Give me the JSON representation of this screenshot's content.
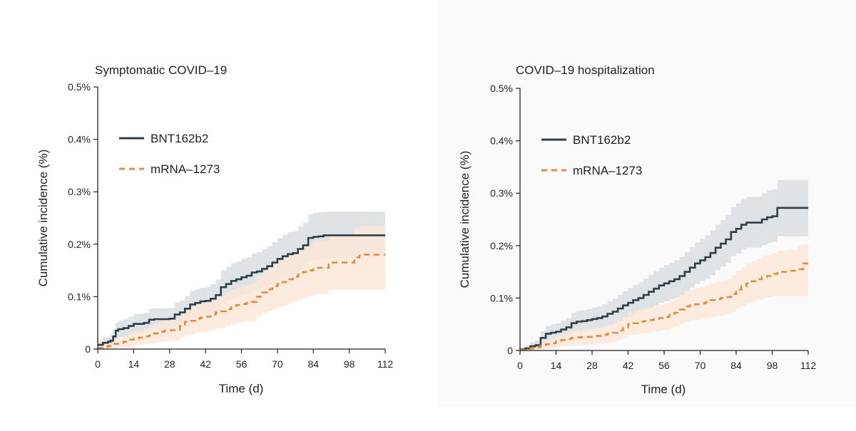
{
  "chart_data": [
    {
      "type": "line",
      "title": "Symptomatic COVID–19",
      "xlabel": "Time (d)",
      "ylabel": "Cumulative incidence (%)",
      "xlim": [
        0,
        112
      ],
      "ylim": [
        0,
        0.5
      ],
      "xticks": [
        0,
        14,
        28,
        42,
        56,
        70,
        84,
        98,
        112
      ],
      "xtick_labels": [
        "0",
        "14",
        "28",
        "42",
        "56",
        "70",
        "84",
        "98",
        "112"
      ],
      "yticks": [
        0,
        0.1,
        0.2,
        0.3,
        0.4,
        0.5
      ],
      "ytick_labels": [
        "0",
        "0.1%",
        "0.2%",
        "0.3%",
        "0.4%",
        "0.5%"
      ],
      "legend_position": "upper-left",
      "series": [
        {
          "name": "BNT162b2",
          "color": "#2e3f47",
          "style": "solid",
          "band_color": "#dde2e4",
          "x": [
            0,
            2,
            4,
            5,
            6,
            7,
            8,
            10,
            12,
            14,
            16,
            18,
            20,
            22,
            24,
            26,
            28,
            30,
            32,
            34,
            36,
            38,
            40,
            42,
            44,
            46,
            48,
            50,
            52,
            54,
            56,
            58,
            60,
            62,
            64,
            66,
            68,
            70,
            72,
            74,
            76,
            78,
            80,
            82,
            84,
            86,
            88,
            98,
            112
          ],
          "y": [
            0.008,
            0.012,
            0.014,
            0.016,
            0.024,
            0.035,
            0.038,
            0.04,
            0.044,
            0.048,
            0.048,
            0.05,
            0.056,
            0.057,
            0.057,
            0.057,
            0.058,
            0.066,
            0.07,
            0.077,
            0.085,
            0.088,
            0.091,
            0.092,
            0.096,
            0.103,
            0.118,
            0.124,
            0.13,
            0.133,
            0.137,
            0.14,
            0.146,
            0.148,
            0.153,
            0.158,
            0.165,
            0.172,
            0.177,
            0.181,
            0.183,
            0.191,
            0.198,
            0.212,
            0.214,
            0.215,
            0.217,
            0.217,
            0.217
          ],
          "lower": [
            0,
            0.003,
            0.005,
            0.006,
            0.012,
            0.02,
            0.023,
            0.024,
            0.027,
            0.03,
            0.03,
            0.032,
            0.036,
            0.037,
            0.037,
            0.037,
            0.038,
            0.044,
            0.048,
            0.054,
            0.06,
            0.063,
            0.065,
            0.066,
            0.069,
            0.075,
            0.087,
            0.092,
            0.097,
            0.1,
            0.103,
            0.106,
            0.111,
            0.113,
            0.117,
            0.121,
            0.127,
            0.133,
            0.137,
            0.141,
            0.143,
            0.15,
            0.156,
            0.168,
            0.17,
            0.171,
            0.172,
            0.176,
            0.176
          ],
          "upper": [
            0.016,
            0.022,
            0.025,
            0.028,
            0.037,
            0.05,
            0.054,
            0.057,
            0.062,
            0.067,
            0.067,
            0.069,
            0.077,
            0.078,
            0.078,
            0.078,
            0.079,
            0.089,
            0.093,
            0.101,
            0.111,
            0.114,
            0.117,
            0.119,
            0.124,
            0.132,
            0.15,
            0.157,
            0.164,
            0.167,
            0.172,
            0.175,
            0.182,
            0.185,
            0.19,
            0.196,
            0.204,
            0.212,
            0.218,
            0.223,
            0.225,
            0.234,
            0.241,
            0.257,
            0.26,
            0.261,
            0.262,
            0.262,
            0.28
          ]
        },
        {
          "name": "mRNA–1273",
          "color": "#e08c45",
          "style": "dashed",
          "band_color": "#fbe8d8",
          "x": [
            0,
            2,
            4,
            6,
            8,
            10,
            12,
            14,
            16,
            18,
            20,
            22,
            24,
            26,
            28,
            30,
            32,
            34,
            36,
            38,
            40,
            42,
            44,
            46,
            48,
            50,
            52,
            54,
            56,
            58,
            60,
            62,
            64,
            66,
            68,
            70,
            72,
            74,
            76,
            78,
            80,
            82,
            84,
            86,
            90,
            98,
            100,
            102,
            112
          ],
          "y": [
            0.002,
            0.004,
            0.006,
            0.01,
            0.012,
            0.014,
            0.018,
            0.02,
            0.022,
            0.024,
            0.026,
            0.03,
            0.033,
            0.035,
            0.036,
            0.036,
            0.044,
            0.052,
            0.054,
            0.058,
            0.06,
            0.062,
            0.066,
            0.07,
            0.072,
            0.076,
            0.08,
            0.084,
            0.086,
            0.088,
            0.09,
            0.1,
            0.108,
            0.114,
            0.12,
            0.124,
            0.128,
            0.133,
            0.138,
            0.142,
            0.147,
            0.15,
            0.155,
            0.155,
            0.165,
            0.165,
            0.175,
            0.18,
            0.18
          ],
          "lower": [
            0,
            0,
            0.001,
            0.002,
            0.003,
            0.004,
            0.006,
            0.007,
            0.008,
            0.009,
            0.01,
            0.012,
            0.014,
            0.015,
            0.016,
            0.016,
            0.021,
            0.027,
            0.028,
            0.031,
            0.032,
            0.034,
            0.037,
            0.04,
            0.041,
            0.044,
            0.047,
            0.05,
            0.051,
            0.053,
            0.054,
            0.062,
            0.068,
            0.072,
            0.077,
            0.08,
            0.083,
            0.087,
            0.091,
            0.094,
            0.098,
            0.101,
            0.105,
            0.105,
            0.113,
            0.113,
            0.113,
            0.113,
            0.113
          ],
          "upper": [
            0.005,
            0.009,
            0.012,
            0.018,
            0.021,
            0.024,
            0.03,
            0.033,
            0.036,
            0.039,
            0.042,
            0.048,
            0.052,
            0.055,
            0.056,
            0.056,
            0.067,
            0.077,
            0.08,
            0.085,
            0.088,
            0.09,
            0.095,
            0.1,
            0.103,
            0.108,
            0.113,
            0.118,
            0.121,
            0.123,
            0.126,
            0.138,
            0.148,
            0.156,
            0.163,
            0.168,
            0.173,
            0.179,
            0.185,
            0.19,
            0.196,
            0.2,
            0.206,
            0.206,
            0.218,
            0.218,
            0.23,
            0.235,
            0.235
          ]
        }
      ]
    },
    {
      "type": "line",
      "title": "COVID–19 hospitalization",
      "xlabel": "Time (d)",
      "ylabel": "Cumulative incidence (%)",
      "xlim": [
        0,
        112
      ],
      "ylim": [
        0,
        0.5
      ],
      "xticks": [
        0,
        14,
        28,
        42,
        56,
        70,
        84,
        98,
        112
      ],
      "xtick_labels": [
        "0",
        "14",
        "28",
        "42",
        "56",
        "70",
        "84",
        "98",
        "112"
      ],
      "yticks": [
        0,
        0.1,
        0.2,
        0.3,
        0.4,
        0.5
      ],
      "ytick_labels": [
        "0",
        "0.1%",
        "0.2%",
        "0.3%",
        "0.4%",
        "0.5%"
      ],
      "legend_position": "upper-left",
      "series": [
        {
          "name": "BNT162b2",
          "color": "#2e3f47",
          "style": "solid",
          "band_color": "#dde2e4",
          "x": [
            0,
            2,
            4,
            6,
            8,
            10,
            12,
            14,
            16,
            18,
            20,
            22,
            24,
            26,
            28,
            30,
            32,
            34,
            36,
            38,
            40,
            42,
            44,
            46,
            48,
            50,
            52,
            54,
            56,
            58,
            60,
            62,
            64,
            66,
            68,
            70,
            72,
            74,
            76,
            78,
            80,
            82,
            84,
            86,
            88,
            92,
            94,
            96,
            98,
            100,
            112
          ],
          "y": [
            0.002,
            0.004,
            0.008,
            0.01,
            0.024,
            0.032,
            0.034,
            0.036,
            0.04,
            0.044,
            0.052,
            0.055,
            0.056,
            0.058,
            0.06,
            0.062,
            0.065,
            0.07,
            0.074,
            0.08,
            0.086,
            0.091,
            0.096,
            0.1,
            0.106,
            0.112,
            0.118,
            0.124,
            0.128,
            0.132,
            0.136,
            0.142,
            0.15,
            0.158,
            0.166,
            0.172,
            0.178,
            0.186,
            0.196,
            0.204,
            0.212,
            0.226,
            0.232,
            0.24,
            0.244,
            0.244,
            0.25,
            0.254,
            0.256,
            0.272,
            0.272
          ],
          "lower": [
            0,
            0,
            0.002,
            0.003,
            0.012,
            0.018,
            0.02,
            0.021,
            0.024,
            0.027,
            0.033,
            0.035,
            0.036,
            0.038,
            0.039,
            0.041,
            0.043,
            0.047,
            0.05,
            0.055,
            0.06,
            0.064,
            0.068,
            0.071,
            0.076,
            0.081,
            0.086,
            0.091,
            0.094,
            0.098,
            0.101,
            0.106,
            0.113,
            0.12,
            0.127,
            0.132,
            0.137,
            0.144,
            0.153,
            0.16,
            0.167,
            0.18,
            0.185,
            0.192,
            0.196,
            0.196,
            0.201,
            0.205,
            0.207,
            0.218,
            0.218
          ],
          "upper": [
            0.006,
            0.01,
            0.016,
            0.019,
            0.037,
            0.047,
            0.05,
            0.052,
            0.057,
            0.062,
            0.072,
            0.076,
            0.077,
            0.079,
            0.082,
            0.084,
            0.088,
            0.094,
            0.099,
            0.106,
            0.113,
            0.119,
            0.125,
            0.13,
            0.137,
            0.144,
            0.151,
            0.158,
            0.163,
            0.167,
            0.172,
            0.179,
            0.188,
            0.197,
            0.206,
            0.213,
            0.22,
            0.229,
            0.24,
            0.249,
            0.258,
            0.273,
            0.28,
            0.289,
            0.293,
            0.293,
            0.3,
            0.305,
            0.308,
            0.325,
            0.328
          ]
        },
        {
          "name": "mRNA–1273",
          "color": "#e08c45",
          "style": "dashed",
          "band_color": "#fbe8d8",
          "x": [
            0,
            2,
            4,
            6,
            8,
            10,
            12,
            14,
            16,
            18,
            20,
            22,
            24,
            26,
            28,
            30,
            32,
            34,
            36,
            38,
            40,
            42,
            44,
            46,
            48,
            50,
            52,
            54,
            56,
            58,
            60,
            62,
            64,
            66,
            68,
            70,
            72,
            74,
            76,
            78,
            80,
            82,
            84,
            86,
            88,
            90,
            92,
            94,
            96,
            98,
            100,
            102,
            104,
            106,
            108,
            110,
            112
          ],
          "y": [
            0.001,
            0.002,
            0.004,
            0.006,
            0.01,
            0.012,
            0.014,
            0.018,
            0.02,
            0.022,
            0.024,
            0.025,
            0.026,
            0.026,
            0.027,
            0.028,
            0.03,
            0.032,
            0.034,
            0.038,
            0.044,
            0.05,
            0.052,
            0.055,
            0.056,
            0.058,
            0.06,
            0.062,
            0.064,
            0.068,
            0.072,
            0.078,
            0.084,
            0.086,
            0.088,
            0.09,
            0.092,
            0.096,
            0.098,
            0.1,
            0.102,
            0.108,
            0.116,
            0.122,
            0.128,
            0.132,
            0.136,
            0.14,
            0.142,
            0.146,
            0.15,
            0.15,
            0.152,
            0.152,
            0.155,
            0.166,
            0.166
          ],
          "lower": [
            0,
            0,
            0,
            0.001,
            0.003,
            0.004,
            0.005,
            0.007,
            0.008,
            0.009,
            0.01,
            0.011,
            0.011,
            0.011,
            0.012,
            0.013,
            0.014,
            0.015,
            0.017,
            0.02,
            0.024,
            0.029,
            0.03,
            0.032,
            0.033,
            0.035,
            0.036,
            0.038,
            0.039,
            0.042,
            0.045,
            0.05,
            0.055,
            0.057,
            0.058,
            0.06,
            0.061,
            0.064,
            0.066,
            0.067,
            0.069,
            0.074,
            0.08,
            0.085,
            0.09,
            0.093,
            0.096,
            0.099,
            0.101,
            0.104,
            0.104,
            0.104,
            0.104,
            0.104,
            0.104,
            0.104,
            0.104
          ],
          "upper": [
            0.003,
            0.005,
            0.008,
            0.011,
            0.017,
            0.02,
            0.023,
            0.029,
            0.032,
            0.035,
            0.038,
            0.039,
            0.041,
            0.041,
            0.042,
            0.043,
            0.046,
            0.049,
            0.052,
            0.057,
            0.065,
            0.072,
            0.075,
            0.079,
            0.08,
            0.082,
            0.085,
            0.087,
            0.09,
            0.095,
            0.1,
            0.107,
            0.114,
            0.116,
            0.119,
            0.121,
            0.124,
            0.129,
            0.131,
            0.134,
            0.136,
            0.143,
            0.152,
            0.159,
            0.166,
            0.171,
            0.175,
            0.18,
            0.182,
            0.186,
            0.19,
            0.19,
            0.192,
            0.192,
            0.2,
            0.202,
            0.202
          ]
        }
      ]
    }
  ]
}
